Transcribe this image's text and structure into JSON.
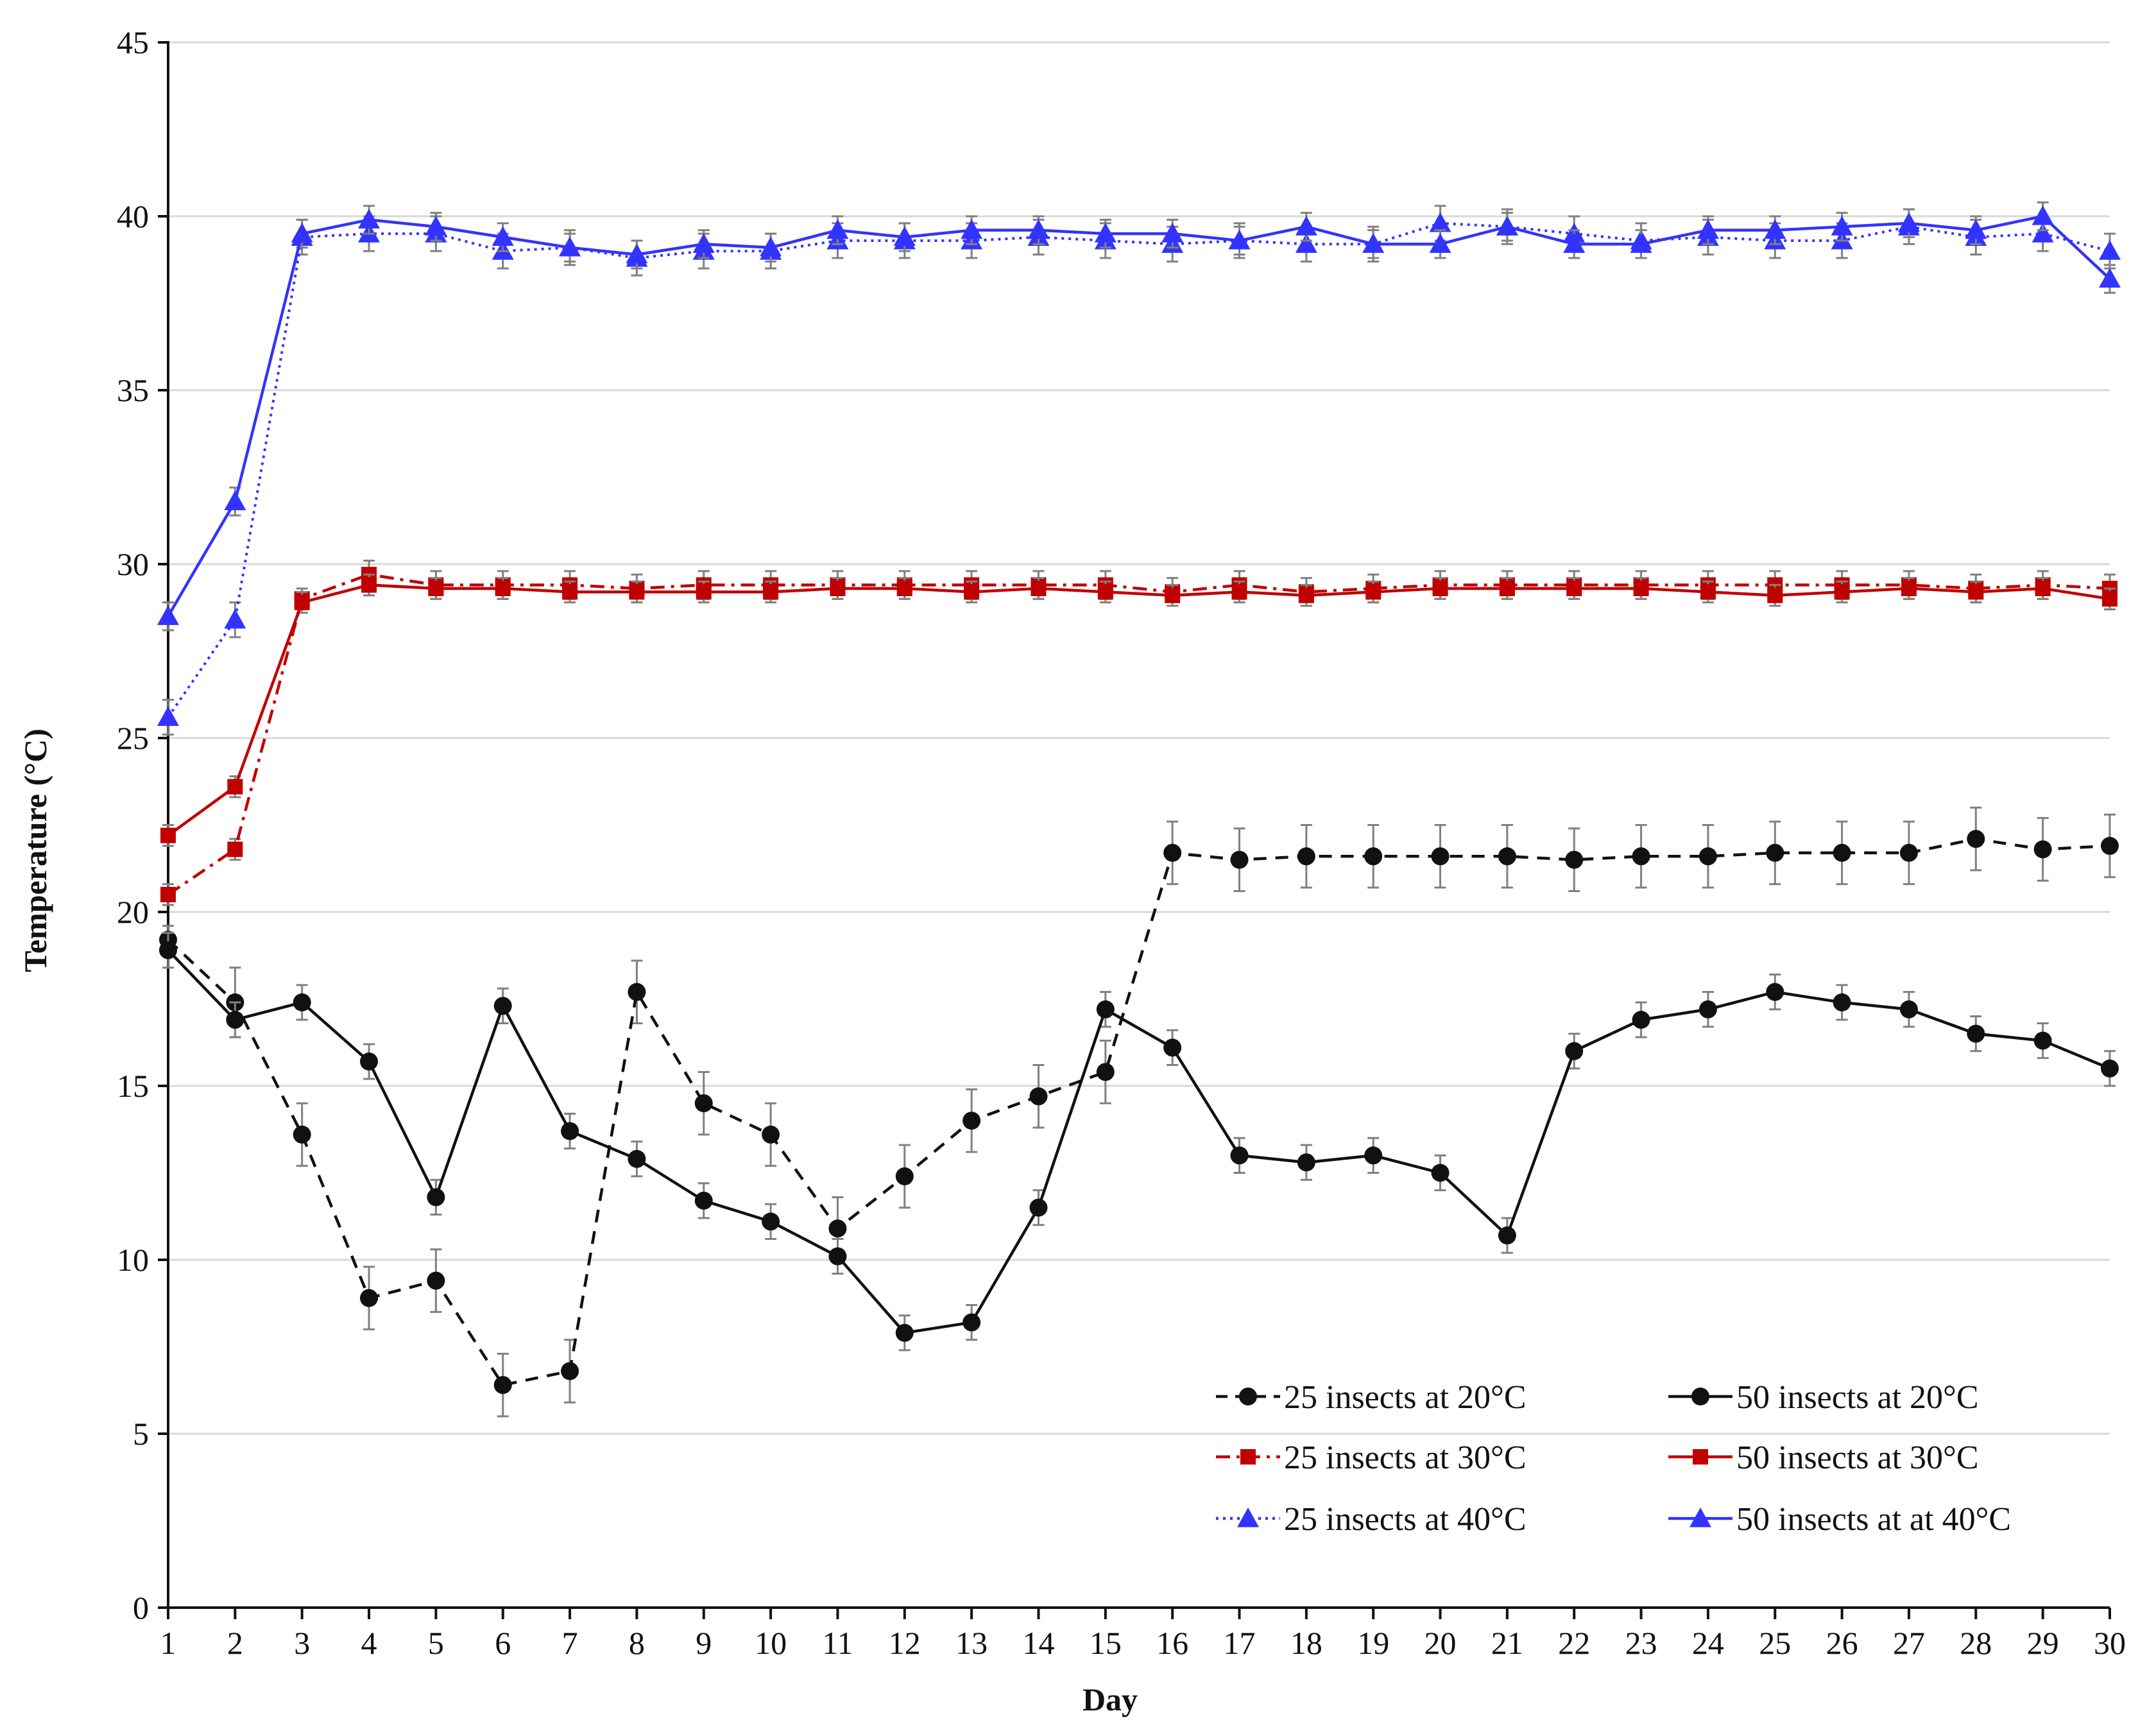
{
  "chart_data": {
    "type": "line",
    "xlabel": "Day",
    "ylabel": "Temperature (°C)",
    "ylim": [
      0,
      45
    ],
    "xlim": [
      1,
      30
    ],
    "y_ticks": [
      0,
      5,
      10,
      15,
      20,
      25,
      30,
      35,
      40,
      45
    ],
    "x": [
      1,
      2,
      3,
      4,
      5,
      6,
      7,
      8,
      9,
      10,
      11,
      12,
      13,
      14,
      15,
      16,
      17,
      18,
      19,
      20,
      21,
      22,
      23,
      24,
      25,
      26,
      27,
      28,
      29,
      30
    ],
    "grid": "horizontal",
    "legend_position": "bottom-right",
    "series": [
      {
        "name": "25 insects at 20°C",
        "color": "#111111",
        "marker": "circle",
        "line_style": "dashed",
        "values": [
          19.2,
          17.4,
          13.6,
          8.9,
          9.4,
          6.4,
          6.8,
          17.7,
          14.5,
          13.6,
          10.9,
          12.4,
          14.0,
          14.7,
          15.4,
          21.7,
          21.5,
          21.6,
          21.6,
          21.6,
          21.6,
          21.5,
          21.6,
          21.6,
          21.7,
          21.7,
          21.7,
          22.1,
          21.8,
          21.9
        ],
        "errors": [
          0.4,
          1.0,
          0.9,
          0.9,
          0.9,
          0.9,
          0.9,
          0.9,
          0.9,
          0.9,
          0.9,
          0.9,
          0.9,
          0.9,
          0.9,
          0.9,
          0.9,
          0.9,
          0.9,
          0.9,
          0.9,
          0.9,
          0.9,
          0.9,
          0.9,
          0.9,
          0.9,
          0.9,
          0.9,
          0.9
        ]
      },
      {
        "name": "50 insects at 20°C",
        "color": "#111111",
        "marker": "circle",
        "line_style": "solid",
        "values": [
          18.9,
          16.9,
          17.4,
          15.7,
          11.8,
          17.3,
          13.7,
          12.9,
          11.7,
          11.1,
          10.1,
          7.9,
          8.2,
          11.5,
          17.2,
          16.1,
          13.0,
          12.8,
          13.0,
          12.5,
          10.7,
          16.0,
          16.9,
          17.2,
          17.7,
          17.4,
          17.2,
          16.5,
          16.3,
          15.5
        ],
        "errors": [
          0.5,
          0.5,
          0.5,
          0.5,
          0.5,
          0.5,
          0.5,
          0.5,
          0.5,
          0.5,
          0.5,
          0.5,
          0.5,
          0.5,
          0.5,
          0.5,
          0.5,
          0.5,
          0.5,
          0.5,
          0.5,
          0.5,
          0.5,
          0.5,
          0.5,
          0.5,
          0.5,
          0.5,
          0.5,
          0.5
        ]
      },
      {
        "name": "25 insects at 30°C",
        "color": "#c00000",
        "marker": "square",
        "line_style": "dash-dot",
        "values": [
          20.5,
          21.8,
          29.0,
          29.7,
          29.4,
          29.4,
          29.4,
          29.3,
          29.4,
          29.4,
          29.4,
          29.4,
          29.4,
          29.4,
          29.4,
          29.2,
          29.4,
          29.2,
          29.3,
          29.4,
          29.4,
          29.4,
          29.4,
          29.4,
          29.4,
          29.4,
          29.4,
          29.3,
          29.4,
          29.3
        ],
        "errors": [
          0.3,
          0.3,
          0.3,
          0.4,
          0.4,
          0.4,
          0.4,
          0.4,
          0.4,
          0.4,
          0.4,
          0.4,
          0.4,
          0.4,
          0.4,
          0.4,
          0.4,
          0.4,
          0.4,
          0.4,
          0.4,
          0.4,
          0.4,
          0.4,
          0.4,
          0.4,
          0.4,
          0.4,
          0.4,
          0.4
        ]
      },
      {
        "name": "50 insects at 30°C",
        "color": "#c00000",
        "marker": "square",
        "line_style": "solid",
        "values": [
          22.2,
          23.6,
          28.9,
          29.4,
          29.3,
          29.3,
          29.2,
          29.2,
          29.2,
          29.2,
          29.3,
          29.3,
          29.2,
          29.3,
          29.2,
          29.1,
          29.2,
          29.1,
          29.2,
          29.3,
          29.3,
          29.3,
          29.3,
          29.2,
          29.1,
          29.2,
          29.3,
          29.2,
          29.3,
          29.0
        ],
        "errors": [
          0.3,
          0.3,
          0.3,
          0.3,
          0.3,
          0.3,
          0.3,
          0.3,
          0.3,
          0.3,
          0.3,
          0.3,
          0.3,
          0.3,
          0.3,
          0.3,
          0.3,
          0.3,
          0.3,
          0.3,
          0.3,
          0.3,
          0.3,
          0.3,
          0.3,
          0.3,
          0.3,
          0.3,
          0.3,
          0.3
        ]
      },
      {
        "name": "25 insects at 40°C",
        "color": "#3333ff",
        "marker": "triangle",
        "line_style": "dotted",
        "values": [
          25.6,
          28.4,
          39.4,
          39.5,
          39.5,
          39.0,
          39.1,
          38.8,
          39.0,
          39.0,
          39.3,
          39.3,
          39.3,
          39.4,
          39.3,
          39.2,
          39.3,
          39.2,
          39.2,
          39.8,
          39.7,
          39.5,
          39.3,
          39.4,
          39.3,
          39.3,
          39.7,
          39.4,
          39.5,
          39.0
        ],
        "errors": [
          0.5,
          0.5,
          0.5,
          0.5,
          0.5,
          0.5,
          0.5,
          0.5,
          0.5,
          0.5,
          0.5,
          0.5,
          0.5,
          0.5,
          0.5,
          0.5,
          0.5,
          0.5,
          0.5,
          0.5,
          0.5,
          0.5,
          0.5,
          0.5,
          0.5,
          0.5,
          0.5,
          0.5,
          0.5,
          0.5
        ]
      },
      {
        "name": "50 insects at at 40°C",
        "color": "#3333ff",
        "marker": "triangle",
        "line_style": "solid",
        "values": [
          28.5,
          31.8,
          39.5,
          39.9,
          39.7,
          39.4,
          39.1,
          38.9,
          39.2,
          39.1,
          39.6,
          39.4,
          39.6,
          39.6,
          39.5,
          39.5,
          39.3,
          39.7,
          39.2,
          39.2,
          39.7,
          39.2,
          39.2,
          39.6,
          39.6,
          39.7,
          39.8,
          39.6,
          40.0,
          38.2
        ],
        "errors": [
          0.4,
          0.4,
          0.4,
          0.4,
          0.4,
          0.4,
          0.4,
          0.4,
          0.4,
          0.4,
          0.4,
          0.4,
          0.4,
          0.4,
          0.4,
          0.4,
          0.4,
          0.4,
          0.4,
          0.4,
          0.4,
          0.4,
          0.4,
          0.4,
          0.4,
          0.4,
          0.4,
          0.4,
          0.4,
          0.4
        ]
      }
    ]
  }
}
